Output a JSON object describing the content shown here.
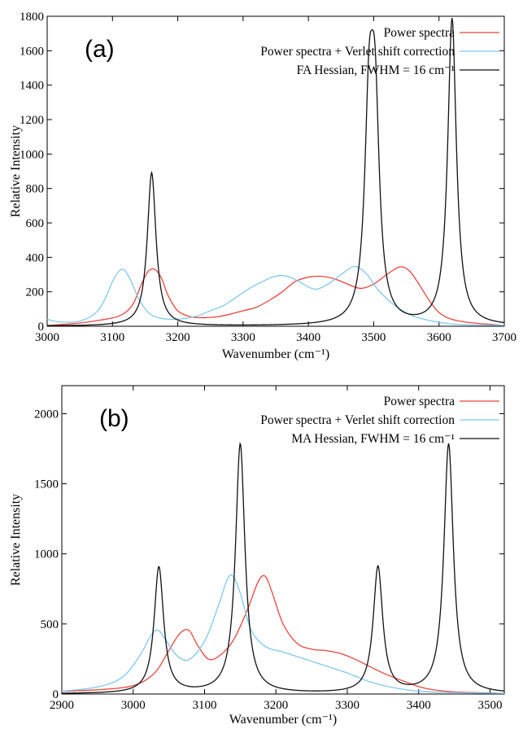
{
  "chart_data": [
    {
      "type": "line",
      "panel_label": "(a)",
      "xlabel": "Wavenumber (cm⁻¹)",
      "ylabel": "Relative Intensity",
      "xlim": [
        3000,
        3700
      ],
      "ylim": [
        0,
        1800
      ],
      "xticks": [
        3000,
        3100,
        3200,
        3300,
        3400,
        3500,
        3600,
        3700
      ],
      "yticks": [
        0,
        200,
        400,
        600,
        800,
        1000,
        1200,
        1400,
        1600,
        1800
      ],
      "grid": false,
      "legend_position": "top-right",
      "series": [
        {
          "name": "Power spectra",
          "color": "#e8453c",
          "x": [
            3000,
            3040,
            3080,
            3110,
            3130,
            3145,
            3155,
            3165,
            3175,
            3185,
            3200,
            3220,
            3240,
            3260,
            3280,
            3300,
            3320,
            3340,
            3360,
            3380,
            3400,
            3420,
            3440,
            3460,
            3480,
            3500,
            3520,
            3540,
            3555,
            3570,
            3585,
            3600,
            3620,
            3650,
            3700
          ],
          "y": [
            5,
            15,
            35,
            60,
            120,
            250,
            320,
            330,
            280,
            180,
            90,
            55,
            50,
            55,
            70,
            90,
            110,
            150,
            200,
            260,
            285,
            290,
            275,
            245,
            220,
            245,
            300,
            345,
            320,
            240,
            150,
            80,
            40,
            20,
            5
          ]
        },
        {
          "name": "Power spectra + Verlet shift correction",
          "color": "#7fc8f0",
          "x": [
            3000,
            3020,
            3050,
            3075,
            3090,
            3100,
            3110,
            3115,
            3120,
            3130,
            3140,
            3155,
            3170,
            3190,
            3210,
            3230,
            3250,
            3270,
            3290,
            3310,
            3330,
            3345,
            3360,
            3375,
            3390,
            3410,
            3430,
            3450,
            3465,
            3475,
            3490,
            3505,
            3520,
            3540,
            3560,
            3590,
            3630,
            3700
          ],
          "y": [
            40,
            25,
            30,
            80,
            170,
            260,
            320,
            330,
            320,
            250,
            160,
            80,
            50,
            40,
            45,
            60,
            90,
            120,
            170,
            220,
            260,
            285,
            295,
            280,
            250,
            215,
            245,
            300,
            340,
            345,
            300,
            220,
            160,
            100,
            60,
            30,
            10,
            5
          ]
        },
        {
          "name": "FA Hessian, FWHM = 16 cm⁻¹",
          "color": "#111111",
          "peaks": [
            {
              "x": 3160,
              "height": 890
            },
            {
              "x": 3493,
              "height": 1125
            },
            {
              "x": 3502,
              "height": 1130
            },
            {
              "x": 3620,
              "height": 1780
            }
          ],
          "fwhm": 16
        }
      ]
    },
    {
      "type": "line",
      "panel_label": "(b)",
      "xlabel": "Wavenumber (cm⁻¹)",
      "ylabel": "Relative Intensity",
      "xlim": [
        2900,
        3520
      ],
      "ylim": [
        0,
        2200
      ],
      "xticks": [
        2900,
        3000,
        3100,
        3200,
        3300,
        3400,
        3500
      ],
      "yticks": [
        0,
        500,
        1000,
        1500,
        2000
      ],
      "grid": false,
      "legend_position": "top-right",
      "series": [
        {
          "name": "Power spectra",
          "color": "#e8453c",
          "x": [
            2900,
            2950,
            3000,
            3030,
            3050,
            3065,
            3078,
            3090,
            3105,
            3120,
            3140,
            3160,
            3175,
            3185,
            3195,
            3210,
            3230,
            3250,
            3270,
            3290,
            3310,
            3330,
            3350,
            3380,
            3410,
            3450,
            3520
          ],
          "y": [
            20,
            30,
            60,
            150,
            310,
            430,
            455,
            350,
            250,
            270,
            380,
            600,
            800,
            840,
            720,
            500,
            360,
            320,
            310,
            290,
            250,
            200,
            150,
            90,
            40,
            15,
            5
          ]
        },
        {
          "name": "Power spectra + Verlet shift correction",
          "color": "#7fc8f0",
          "x": [
            2900,
            2950,
            2985,
            3010,
            3025,
            3035,
            3045,
            3060,
            3075,
            3090,
            3105,
            3120,
            3132,
            3140,
            3150,
            3165,
            3185,
            3210,
            3240,
            3270,
            3300,
            3330,
            3360,
            3400,
            3450,
            3520
          ],
          "y": [
            20,
            50,
            120,
            280,
            420,
            455,
            390,
            280,
            240,
            300,
            430,
            640,
            820,
            840,
            720,
            460,
            340,
            300,
            250,
            200,
            150,
            90,
            50,
            20,
            10,
            5
          ]
        },
        {
          "name": "MA Hessian, FWHM = 16 cm⁻¹",
          "color": "#111111",
          "peaks": [
            {
              "x": 3036,
              "height": 900
            },
            {
              "x": 3150,
              "height": 1780
            },
            {
              "x": 3343,
              "height": 900
            },
            {
              "x": 3442,
              "height": 1780
            }
          ],
          "fwhm": 16
        }
      ]
    }
  ]
}
